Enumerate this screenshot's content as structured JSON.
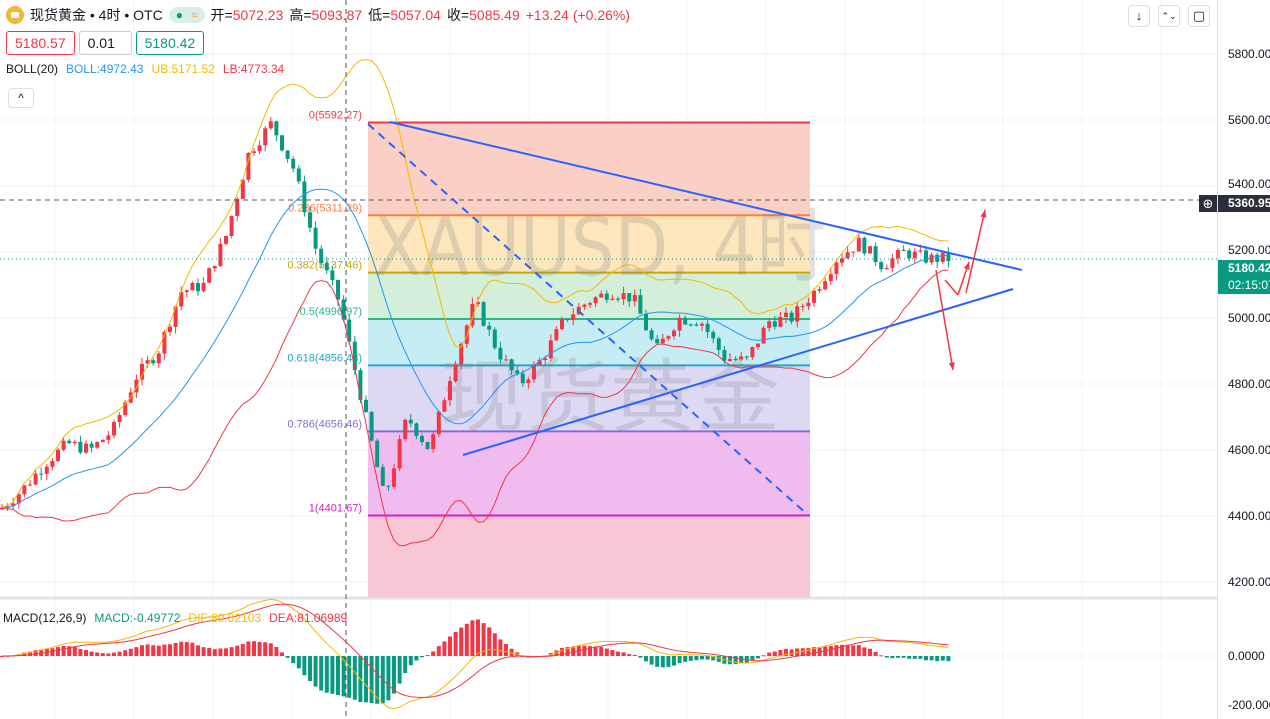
{
  "header": {
    "symbol": "现货黄金 • 4时 • OTC",
    "status_icon": "market-open-dot",
    "wave_icon": "≈",
    "open_label": "开=",
    "open": "5072.23",
    "high_label": "高=",
    "high": "5093.87",
    "low_label": "低=",
    "low": "5057.04",
    "close_label": "收=",
    "close": "5085.49",
    "change": "+13.24 (+0.26%)"
  },
  "trade": {
    "sell": "5180.57",
    "qty": "0.01",
    "buy": "5180.42"
  },
  "boll": {
    "name": "BOLL(20)",
    "mid": "BOLL:4972.43",
    "ub": "UB:5171.52",
    "lb": "LB:4773.34"
  },
  "macd": {
    "name": "MACD(12,26,9)",
    "macd": "MACD:-0.49772",
    "dif": "DIF:80.82103",
    "dea": "DEA:81.06989"
  },
  "toolbar": {
    "collapse": "^",
    "down": "↓",
    "compress": "⌃⌄",
    "fullscreen": "▢"
  },
  "watermark": {
    "line1": "XAUUSD, 4时",
    "line2": "现货黄金"
  },
  "axis": {
    "price_ticks": [
      "5800.00",
      "5600.00",
      "5400.00",
      "5200.00",
      "5000.00",
      "4800.00",
      "4600.00",
      "4400.00",
      "4200.00"
    ],
    "macd_ticks": [
      "0.0000",
      "-200.0000"
    ],
    "crosshair_price": "5360.95",
    "last_price": "5180.42",
    "countdown": "02:15:07"
  },
  "colors": {
    "up": "#f23645",
    "down": "#089981",
    "boll_mid": "#2196f3",
    "boll_ub": "#f5b800",
    "boll_lb": "#f23645",
    "trendline": "#2962ff"
  },
  "fib": [
    {
      "label": "0(5592.27)",
      "price": 5592.27,
      "color": "#f23645",
      "fill": "#fbd0c4"
    },
    {
      "label": "0.236(5311.29)",
      "price": 5311.29,
      "color": "#ff7e3d",
      "fill": "#fde6bb"
    },
    {
      "label": "0.382(5137.46)",
      "price": 5137.46,
      "color": "#c8a800",
      "fill": "#d3efd9"
    },
    {
      "label": "0.5(4996.97)",
      "price": 4996.97,
      "color": "#2eb886",
      "fill": "#c6edf3"
    },
    {
      "label": "0.618(4856.48)",
      "price": 4856.48,
      "color": "#22a6c9",
      "fill": "#ddd9f3"
    },
    {
      "label": "0.786(4656.46)",
      "price": 4656.46,
      "color": "#8a6bd6",
      "fill": "#f0bcef"
    },
    {
      "label": "1(4401.67)",
      "price": 4401.67,
      "color": "#d41ec8",
      "fill": "#f7c7d6"
    }
  ],
  "chart_data": {
    "type": "candlestick",
    "note_series": "approximate close path",
    "close_path": [
      4420,
      4480,
      4560,
      4620,
      4600,
      4660,
      4820,
      4900,
      5080,
      5100,
      5250,
      5500,
      5590,
      5450,
      5200,
      5050,
      4750,
      4450,
      4700,
      4600,
      4850,
      5050,
      4900,
      4800,
      4880,
      5000,
      5050,
      5080,
      5060,
      4900,
      5000,
      4990,
      4880,
      4870,
      4990,
      5000,
      5080,
      5180,
      5230,
      5160,
      5200,
      5180,
      5180
    ]
  }
}
